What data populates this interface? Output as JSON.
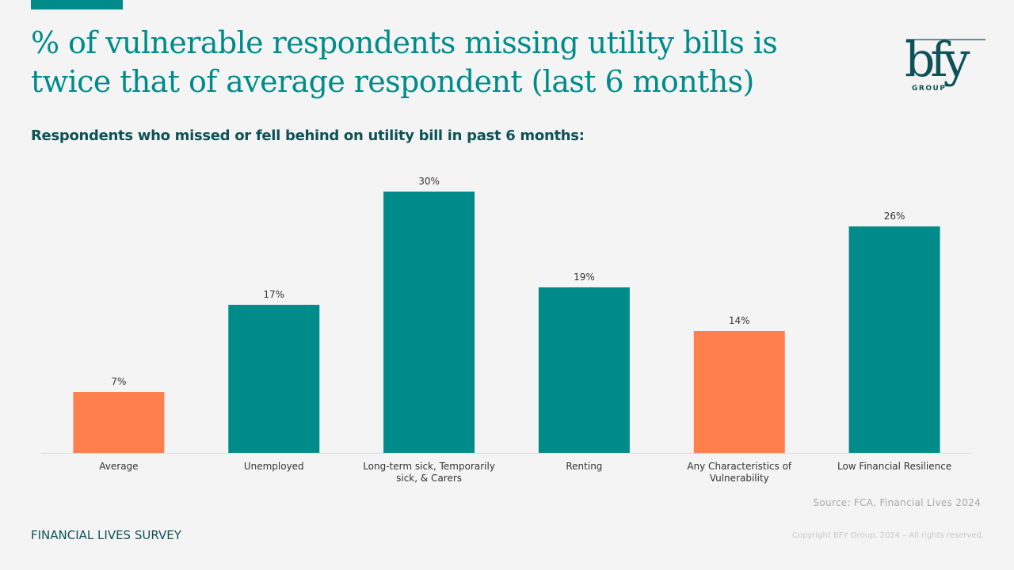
{
  "header": {
    "title_line1": "% of vulnerable respondents missing utility bills is",
    "title_line2": "twice that of average respondent (last 6 months)",
    "logo_text": "bfy",
    "logo_subtext": "GROUP"
  },
  "colors": {
    "primary": "#008b8b",
    "highlight": "#ff7f4d",
    "text_dark": "#0e5257"
  },
  "chart_data": {
    "type": "bar",
    "title": "Respondents who missed or fell behind on utility bill in past 6 months:",
    "xlabel": "",
    "ylabel": "",
    "ylim": [
      0,
      30
    ],
    "grid": false,
    "legend": "none",
    "categories": [
      [
        "Average"
      ],
      [
        "Unemployed"
      ],
      [
        "Long-term sick, Temporarily",
        "sick, & Carers"
      ],
      [
        "Renting"
      ],
      [
        "Any Characteristics of",
        "Vulnerability"
      ],
      [
        "Low Financial Resilience"
      ]
    ],
    "values": [
      7,
      17,
      30,
      19,
      14,
      26
    ],
    "value_labels": [
      "7%",
      "17%",
      "30%",
      "19%",
      "14%",
      "26%"
    ],
    "highlighted": [
      true,
      false,
      false,
      false,
      true,
      false
    ],
    "unit": "%"
  },
  "footer": {
    "survey_label": "FINANCIAL LIVES SURVEY",
    "source": "Source: FCA, Financial Lives 2024",
    "copyright": "Copyright BFY Group, 2024 – All rights reserved."
  }
}
